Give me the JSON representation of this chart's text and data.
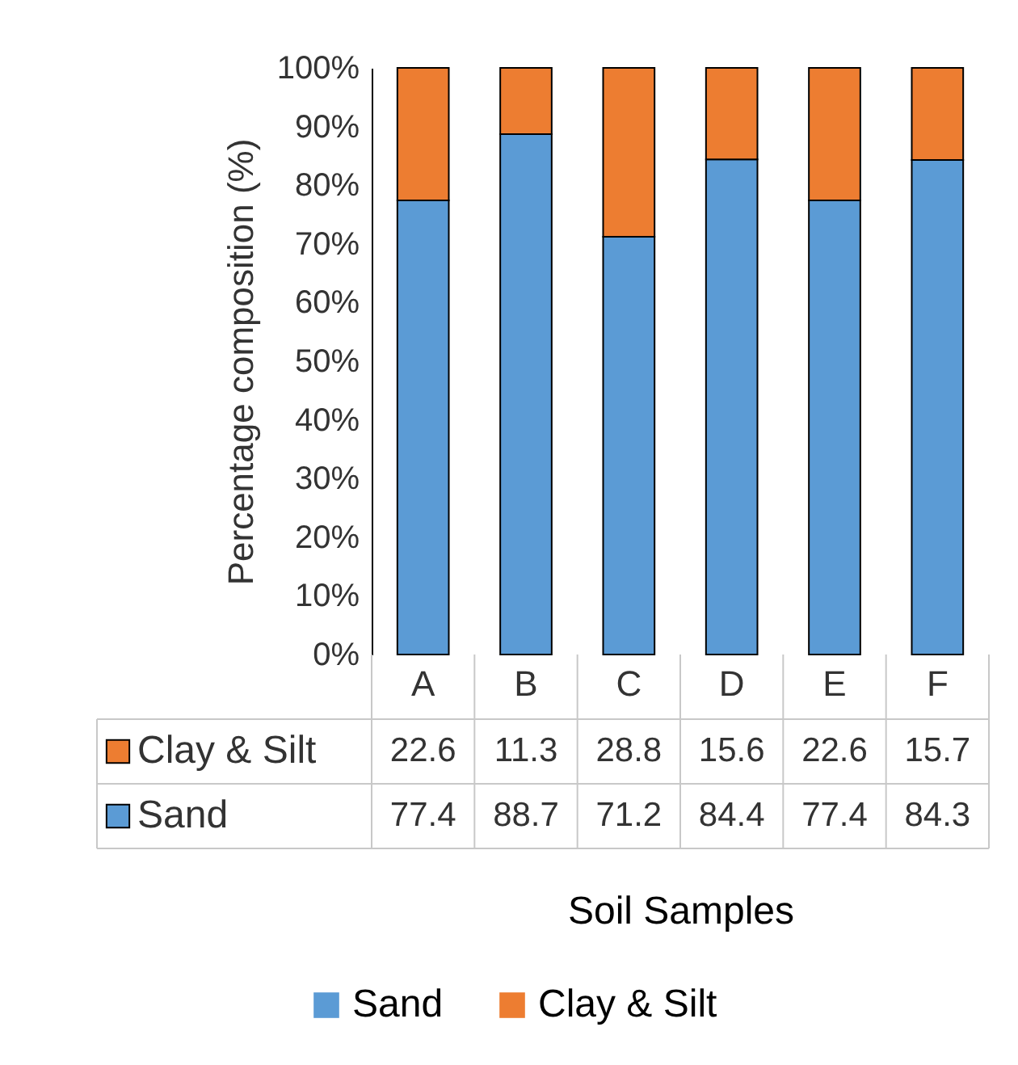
{
  "chart_data": {
    "type": "bar",
    "stacked": true,
    "xlabel": "Soil Samples",
    "ylabel": "Percentage composition (%)",
    "categories": [
      "A",
      "B",
      "C",
      "D",
      "E",
      "F"
    ],
    "series": [
      {
        "name": "Sand",
        "color": "#5b9bd5",
        "values": [
          77.4,
          88.7,
          71.2,
          84.4,
          77.4,
          84.3
        ]
      },
      {
        "name": "Clay & Silt",
        "color": "#ed7d31",
        "values": [
          22.6,
          11.3,
          28.8,
          15.6,
          22.6,
          15.7
        ]
      }
    ],
    "ylim": [
      0,
      100
    ],
    "yticks": [
      {
        "value": 0,
        "label": "0%"
      },
      {
        "value": 10,
        "label": "10%"
      },
      {
        "value": 20,
        "label": "20%"
      },
      {
        "value": 30,
        "label": "30%"
      },
      {
        "value": 40,
        "label": "40%"
      },
      {
        "value": 50,
        "label": "50%"
      },
      {
        "value": 60,
        "label": "60%"
      },
      {
        "value": 70,
        "label": "70%"
      },
      {
        "value": 80,
        "label": "80%"
      },
      {
        "value": 90,
        "label": "90%"
      },
      {
        "value": 100,
        "label": "100%"
      }
    ],
    "grid": false,
    "legend": "bottom",
    "data_labels": true
  }
}
